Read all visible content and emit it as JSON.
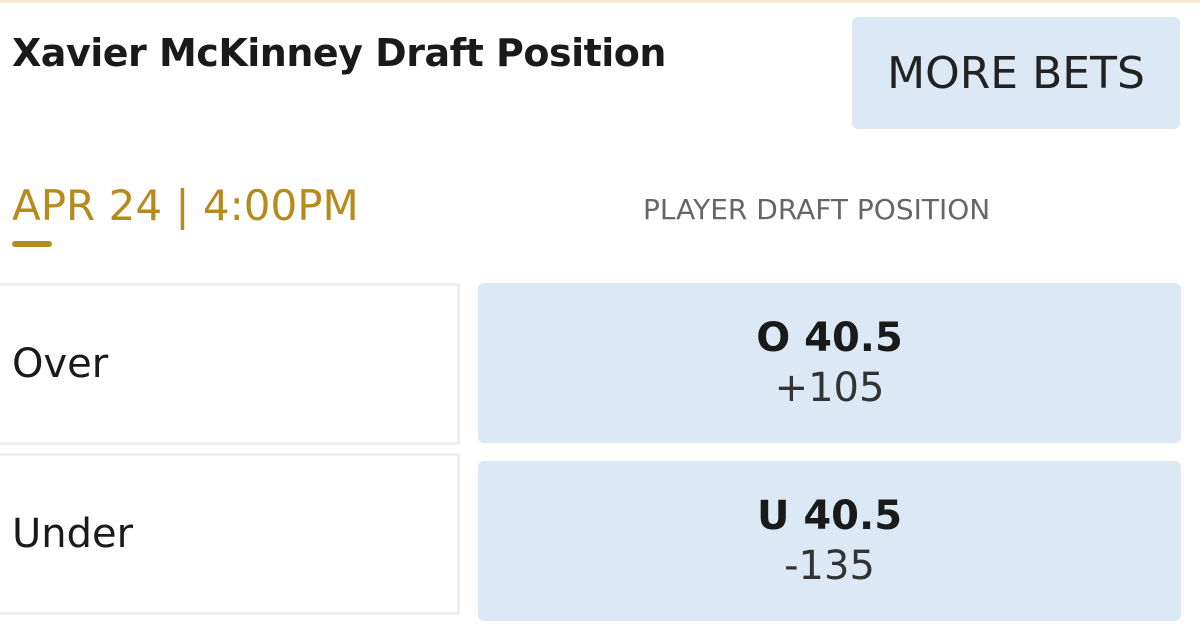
{
  "header": {
    "title": "Xavier McKinney Draft Position",
    "button": "MORE BETS"
  },
  "event": {
    "date": "APR 24 | 4:00PM",
    "market": "PLAYER DRAFT POSITION"
  },
  "rows": [
    {
      "label": "Over",
      "line": "O 40.5",
      "odds": "+105"
    },
    {
      "label": "Under",
      "line": "U 40.5",
      "odds": "-135"
    }
  ]
}
